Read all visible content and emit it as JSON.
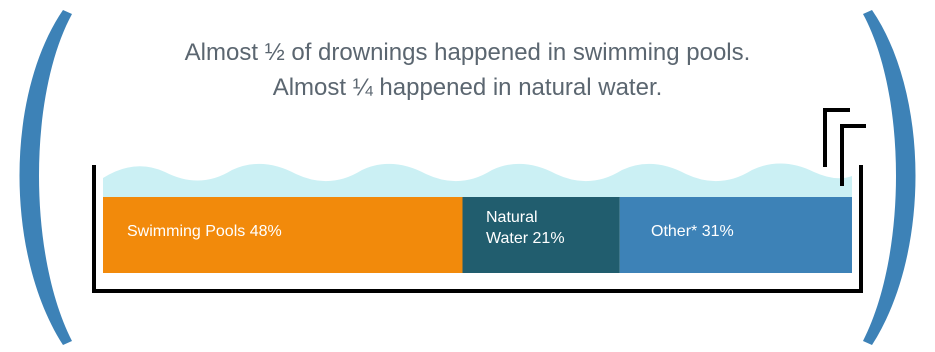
{
  "headline": {
    "line1": "Almost ½ of drownings happened in swimming pools.",
    "line2": "Almost ¼ happened in natural water."
  },
  "chart_data": {
    "type": "bar",
    "orientation": "horizontal-stacked",
    "categories": [
      "Swimming Pools",
      "Natural Water",
      "Other*"
    ],
    "values": [
      48,
      21,
      31
    ],
    "unit": "%",
    "labels": {
      "pools": "Swimming Pools 48%",
      "natural_1": "Natural",
      "natural_2": "Water 21%",
      "other": "Other* 31%"
    },
    "colors": [
      "#f28a0b",
      "#215d6e",
      "#3d82b7"
    ]
  },
  "colors": {
    "bracket": "#3d82b7",
    "water": "#cbf0f4",
    "outline": "#000000",
    "text": "#5b6670"
  },
  "icons": [
    "left-parenthesis-icon",
    "right-parenthesis-icon",
    "pool-ladder-icon"
  ]
}
